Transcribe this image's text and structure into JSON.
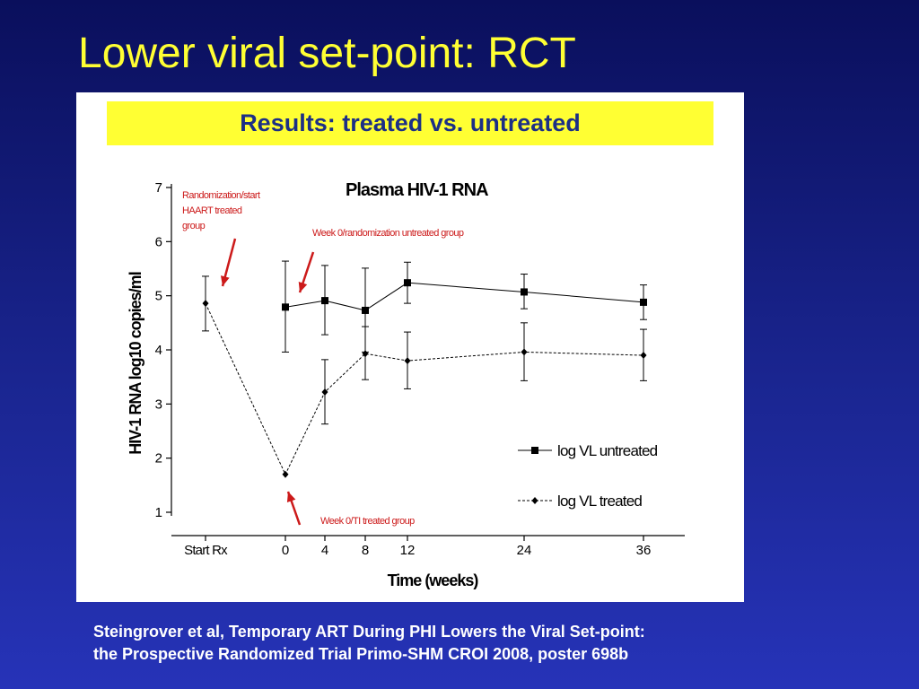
{
  "slide": {
    "title": "Lower viral set-point: RCT",
    "banner": "Results: treated vs. untreated",
    "citation_line1": "Steingrover et al, Temporary ART During PHI Lowers the Viral Set-point:",
    "citation_line2": "the Prospective Randomized Trial Primo-SHM CROI 2008, poster 698b"
  },
  "colors": {
    "background": "#1a2590",
    "title": "#ffff33",
    "banner_bg": "#ffff33",
    "banner_text": "#1c2f86",
    "annotation": "#cc1a1a",
    "series": "#000000"
  },
  "chart_data": {
    "type": "line",
    "title": "Plasma HIV-1 RNA",
    "xlabel": "Time (weeks)",
    "ylabel": "HIV-1 RNA log10 copies/ml",
    "categories": [
      "Start Rx",
      "0",
      "4",
      "8",
      "12",
      "24",
      "36"
    ],
    "ylim": [
      1,
      7
    ],
    "yticks": [
      "1",
      "2",
      "3",
      "4",
      "5",
      "6",
      "7"
    ],
    "grid": false,
    "legend_position": "bottom-right",
    "series": [
      {
        "name": "log VL untreated",
        "marker": "square",
        "line": "solid",
        "points": [
          {
            "x": "0",
            "y": 4.79,
            "low": 3.96,
            "high": 5.64
          },
          {
            "x": "4",
            "y": 4.91,
            "low": 4.28,
            "high": 5.56
          },
          {
            "x": "8",
            "y": 4.73,
            "low": 3.96,
            "high": 5.51
          },
          {
            "x": "12",
            "y": 5.24,
            "low": 4.86,
            "high": 5.62
          },
          {
            "x": "24",
            "y": 5.07,
            "low": 4.76,
            "high": 5.4
          },
          {
            "x": "36",
            "y": 4.88,
            "low": 4.56,
            "high": 5.2
          }
        ]
      },
      {
        "name": "log VL treated",
        "marker": "diamond",
        "line": "dotted",
        "points": [
          {
            "x": "Start Rx",
            "y": 4.86,
            "low": 4.35,
            "high": 5.36
          },
          {
            "x": "0",
            "y": 1.7,
            "low": null,
            "high": null
          },
          {
            "x": "4",
            "y": 3.22,
            "low": 2.63,
            "high": 3.82
          },
          {
            "x": "8",
            "y": 3.93,
            "low": 3.45,
            "high": 4.43
          },
          {
            "x": "12",
            "y": 3.8,
            "low": 3.28,
            "high": 4.33
          },
          {
            "x": "24",
            "y": 3.96,
            "low": 3.43,
            "high": 4.5
          },
          {
            "x": "36",
            "y": 3.9,
            "low": 3.43,
            "high": 4.38
          }
        ]
      }
    ],
    "annotations": [
      {
        "text": "Randomization/start HAART treated group",
        "lines": [
          "Randomization/start",
          "HAART treated",
          "group"
        ]
      },
      {
        "text": "Week 0/randomization untreated group",
        "lines": [
          "Week 0/randomization untreated group"
        ]
      },
      {
        "text": "Week 0/TI treated group",
        "lines": [
          "Week 0/TI treated group"
        ]
      }
    ]
  }
}
